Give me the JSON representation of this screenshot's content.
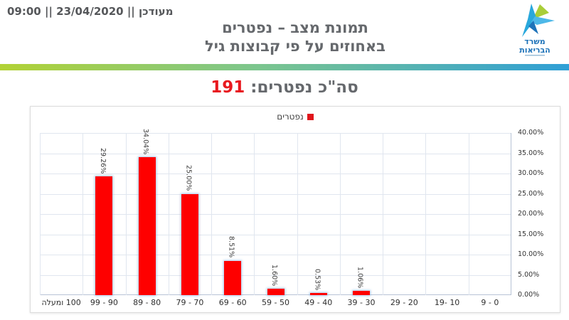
{
  "header": {
    "updated_text": "מעודכן || 23/04/2020 || 09:00",
    "title_line1": "תמונת מצב – נפטרים",
    "title_line2": "באחוזים על פי קבוצות גיל",
    "logo": {
      "name": "israel-ministry-of-health-logo",
      "line1": "משרד",
      "line2": "הבריאות"
    }
  },
  "summary": {
    "label": "סה\"כ נפטרים: ",
    "value": "191"
  },
  "chart_data": {
    "type": "bar",
    "direction": "rtl",
    "legend": "נפטרים",
    "legend_position": "top-center",
    "categories_order": "left-to-right",
    "categories": [
      "100 ומעלה",
      "90 - 99",
      "80 - 89",
      "70 - 79",
      "60 - 69",
      "50 - 59",
      "40 - 49",
      "30 - 39",
      "20 - 29",
      "10 -19",
      "0 - 9"
    ],
    "values": [
      0,
      29.26,
      34.04,
      25.0,
      8.51,
      1.6,
      0.53,
      1.06,
      0,
      0,
      0
    ],
    "data_labels": [
      "",
      "29.26%",
      "34.04%",
      "25.00%",
      "8.51%",
      "1.60%",
      "0.53%",
      "1.06%",
      "",
      "",
      ""
    ],
    "ylim": [
      0,
      40
    ],
    "y_tick_step": 5,
    "y_ticks": [
      "0.00%",
      "5.00%",
      "10.00%",
      "15.00%",
      "20.00%",
      "25.00%",
      "30.00%",
      "35.00%",
      "40.00%"
    ],
    "y_axis_side": "right",
    "grid": true,
    "title": "סה\"כ נפטרים: 191"
  },
  "colors": {
    "bar_red": "#fe0000",
    "accent_red": "#e8191f",
    "legend_red": "#e0151b",
    "title_gray": "#65686c",
    "grid": "#e0e6ef",
    "axis": "#b7c3d5",
    "gradient_left": "#b2d235",
    "gradient_right": "#2f9fd6"
  }
}
